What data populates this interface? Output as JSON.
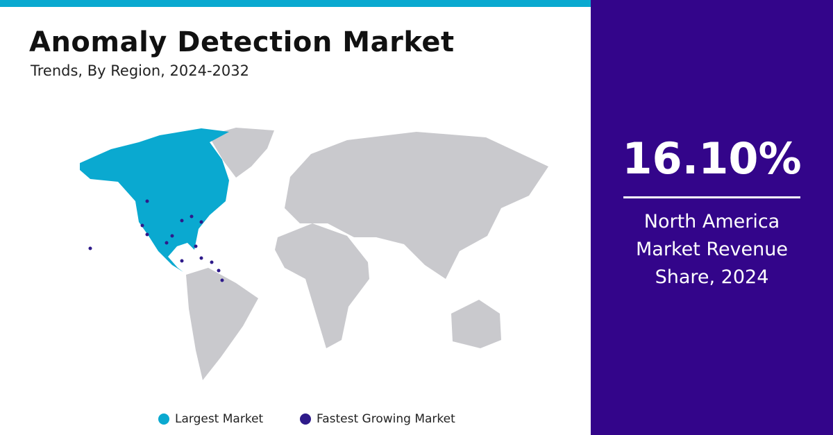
{
  "header": {
    "title": "Anomaly Detection Market",
    "subtitle": "Trends, By Region, 2024-2032"
  },
  "stat": {
    "value": "16.10%",
    "caption": "North America Market Revenue Share, 2024"
  },
  "legend": {
    "items": [
      {
        "label": "Largest Market"
      },
      {
        "label": "Fastest Growing Market"
      }
    ]
  }
}
